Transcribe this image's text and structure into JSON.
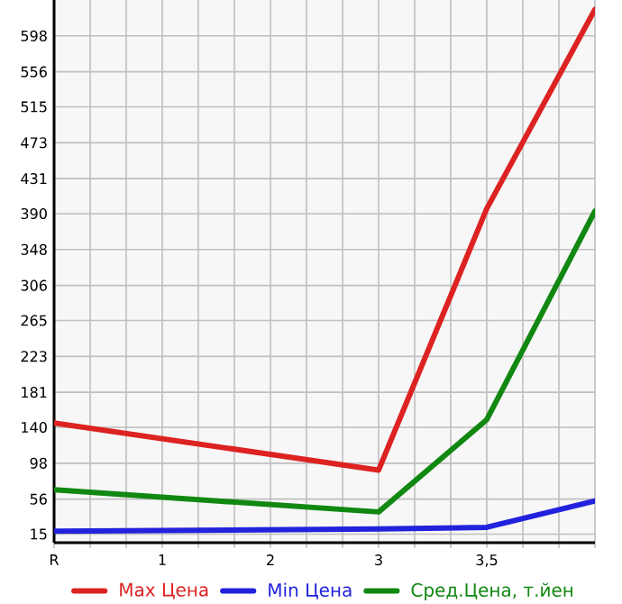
{
  "chart_data": {
    "type": "line",
    "categories": [
      "R",
      "1",
      "2",
      "3",
      "3,5",
      null
    ],
    "series": [
      {
        "name": "Max Цена",
        "color": "#dd2222",
        "values": [
          145,
          null,
          null,
          90,
          396,
          629
        ]
      },
      {
        "name": "Min Цена",
        "color": "#2222dd",
        "values": [
          18.5,
          null,
          null,
          21,
          23,
          54
        ]
      },
      {
        "name": "Сред.Цена, т.йен",
        "color": "#118811",
        "values": [
          67,
          null,
          null,
          41,
          149,
          393
        ]
      }
    ],
    "ylim": [
      5,
      640
    ],
    "yticks": [
      15,
      56,
      98,
      140,
      181,
      223,
      265,
      306,
      348,
      390,
      431,
      473,
      515,
      556,
      598
    ],
    "grid": true,
    "legend": "bottom",
    "marker": "none",
    "line_style": "solid"
  }
}
